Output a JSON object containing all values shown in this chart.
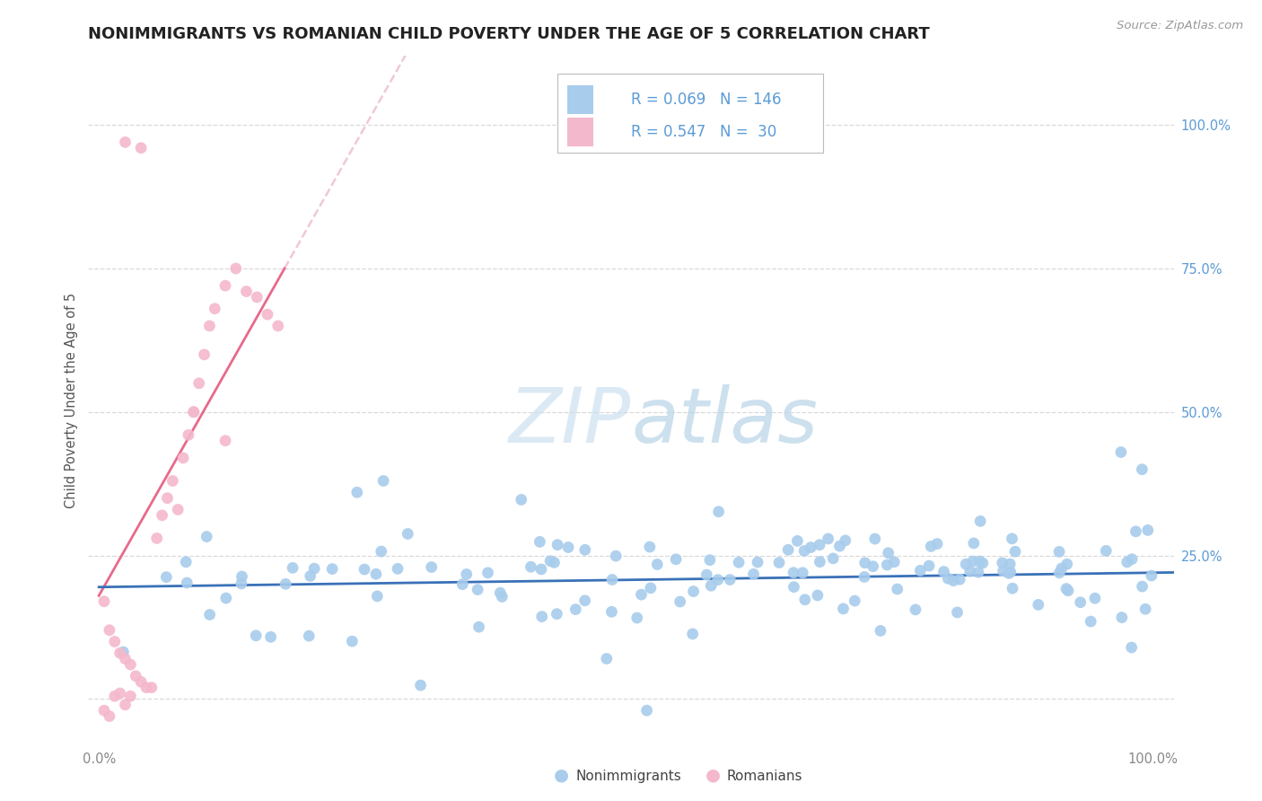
{
  "title": "NONIMMIGRANTS VS ROMANIAN CHILD POVERTY UNDER THE AGE OF 5 CORRELATION CHART",
  "source": "Source: ZipAtlas.com",
  "ylabel": "Child Poverty Under the Age of 5",
  "xlim": [
    -0.01,
    1.02
  ],
  "ylim": [
    -0.08,
    1.12
  ],
  "y_ticks_right": [
    1.0,
    0.75,
    0.5,
    0.25
  ],
  "y_tick_labels_right": [
    "100.0%",
    "75.0%",
    "50.0%",
    "25.0%"
  ],
  "color_blue": "#a8ccec",
  "color_blue_line": "#3a71b8",
  "color_pink": "#f4b8cc",
  "color_pink_line": "#e8698a",
  "color_pink_dash": "#f0c8d8",
  "background": "#ffffff",
  "grid_color": "#d0d0d0",
  "title_color": "#222222",
  "right_label_color": "#5b9bd5",
  "watermark_color": "#daeaf7"
}
